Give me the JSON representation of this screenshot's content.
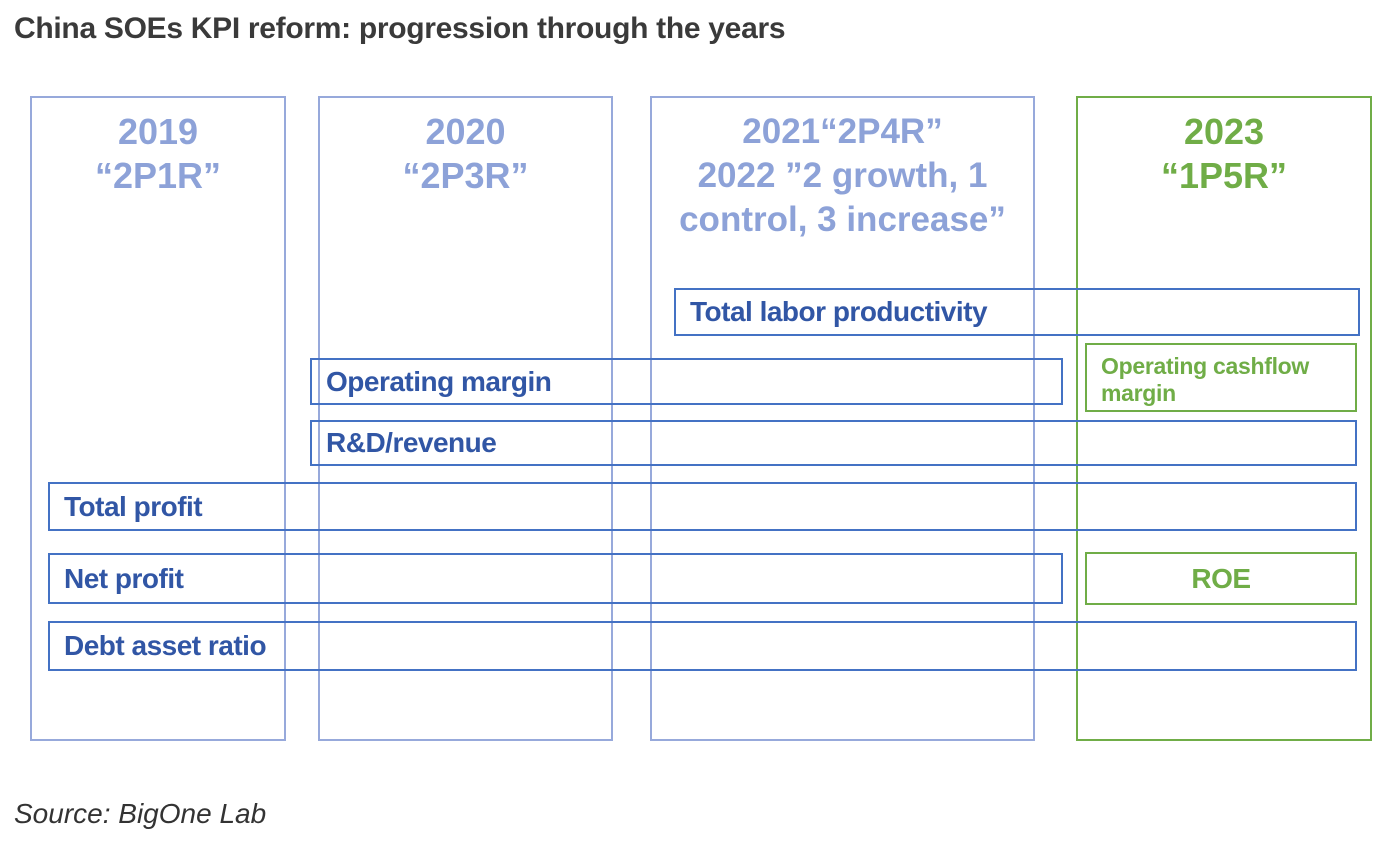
{
  "title": "China SOEs KPI reform: progression through the years",
  "source": "Source: BigOne Lab",
  "colors": {
    "light_blue": "#97a9db",
    "header_blue": "#8da2d8",
    "bar_blue": "#4472c4",
    "text_blue": "#3156a5",
    "green": "#70ad47",
    "title_gray": "#3a3a3a"
  },
  "columns": [
    {
      "year": "2019",
      "header": "2019\n“2P1R”"
    },
    {
      "year": "2020",
      "header": "2020\n“2P3R”"
    },
    {
      "year": "2021-2022",
      "header": "2021“2P4R”\n2022 ”2 growth, 1\ncontrol, 3 increase”"
    },
    {
      "year": "2023",
      "header": "2023\n“1P5R”"
    }
  ],
  "bars": [
    {
      "label": "Total labor productivity",
      "theme": "blue",
      "span": "2021-2023"
    },
    {
      "label": "Operating margin",
      "theme": "blue",
      "span": "2020-2022"
    },
    {
      "label": "Operating cashflow margin",
      "theme": "green",
      "span": "2023"
    },
    {
      "label": "R&D/revenue",
      "theme": "blue",
      "span": "2020-2023"
    },
    {
      "label": "Total profit",
      "theme": "blue",
      "span": "2019-2023"
    },
    {
      "label": "Net profit",
      "theme": "blue",
      "span": "2019-2022"
    },
    {
      "label": "ROE",
      "theme": "green",
      "span": "2023"
    },
    {
      "label": "Debt asset ratio",
      "theme": "blue",
      "span": "2019-2023"
    }
  ]
}
